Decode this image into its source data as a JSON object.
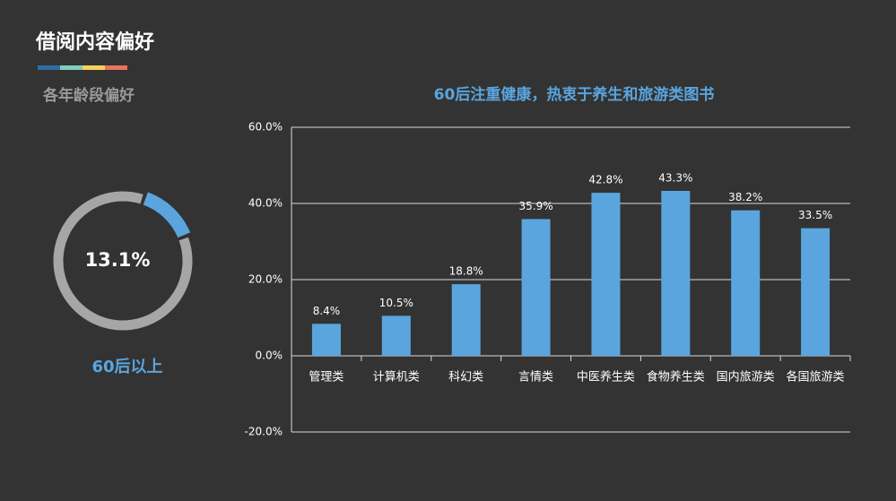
{
  "header": {
    "title": "借阅内容偏好",
    "subtitle": "各年龄段偏好"
  },
  "chart_data": [
    {
      "type": "donut",
      "values": [
        13.1
      ],
      "value_labels": [
        "13.1%"
      ],
      "label": "60后以上",
      "color": "#5aa5de",
      "track_color": "#a6a6a6"
    },
    {
      "type": "bar",
      "title": "60后注重健康，热衷于养生和旅游类图书",
      "categories": [
        "管理类",
        "计算机类",
        "科幻类",
        "言情类",
        "中医养生类",
        "食物养生类",
        "国内旅游类",
        "各国旅游类"
      ],
      "values": [
        8.4,
        10.5,
        18.8,
        35.9,
        42.8,
        43.3,
        38.2,
        33.5
      ],
      "value_labels": [
        "8.4%",
        "10.5%",
        "18.8%",
        "35.9%",
        "42.8%",
        "43.3%",
        "38.2%",
        "33.5%"
      ],
      "color": "#5aa5de",
      "ylim": [
        -20,
        60
      ],
      "yticks": [
        {
          "value": -20,
          "label": "-20.0%"
        },
        {
          "value": 0,
          "label": "0.0%"
        },
        {
          "value": 20,
          "label": "20.0%"
        },
        {
          "value": 40,
          "label": "40.0%"
        },
        {
          "value": 60,
          "label": "60.0%"
        }
      ],
      "grid": true
    }
  ]
}
